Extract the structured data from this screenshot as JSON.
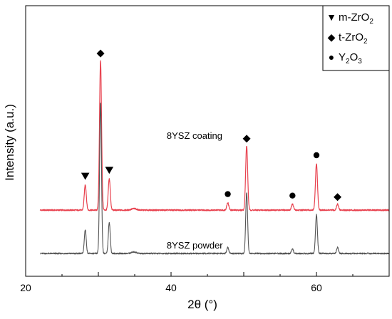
{
  "chart_data": {
    "type": "line",
    "xlabel": "2θ (°)",
    "ylabel": "Intensity (a.u.)",
    "xlim": [
      20,
      70
    ],
    "xticks": [
      20,
      40,
      60
    ],
    "y_ticks_labeled": false,
    "grid": false,
    "legend": {
      "placement": "top-right",
      "entries": [
        {
          "marker": "▼",
          "symbol": "triangle-down",
          "label": "m-ZrO",
          "sub": "2"
        },
        {
          "marker": "◆",
          "symbol": "diamond",
          "label": "t-ZrO",
          "sub": "2"
        },
        {
          "marker": "●",
          "symbol": "circle",
          "label": "Y",
          "sub": "2",
          "label2": "O",
          "sub2": "3"
        }
      ]
    },
    "series": [
      {
        "name": "8YSZ  coating",
        "color": "#e8424f",
        "baseline": 0.29,
        "peaks": [
          {
            "x": 28.2,
            "height": 0.17,
            "width": 0.14
          },
          {
            "x": 30.3,
            "height": 1.0,
            "width": 0.14
          },
          {
            "x": 31.5,
            "height": 0.21,
            "width": 0.14
          },
          {
            "x": 34.9,
            "height": 0.01,
            "width": 0.35
          },
          {
            "x": 47.8,
            "height": 0.05,
            "width": 0.14
          },
          {
            "x": 50.4,
            "height": 0.43,
            "width": 0.14
          },
          {
            "x": 56.7,
            "height": 0.04,
            "width": 0.14
          },
          {
            "x": 60.0,
            "height": 0.31,
            "width": 0.14
          },
          {
            "x": 62.9,
            "height": 0.04,
            "width": 0.14
          }
        ]
      },
      {
        "name": "8YSZ  powder",
        "color": "#555555",
        "baseline": 0.0,
        "peaks": [
          {
            "x": 28.2,
            "height": 0.16,
            "width": 0.13
          },
          {
            "x": 30.3,
            "height": 1.01,
            "width": 0.13
          },
          {
            "x": 31.5,
            "height": 0.21,
            "width": 0.13
          },
          {
            "x": 34.9,
            "height": 0.01,
            "width": 0.35
          },
          {
            "x": 47.8,
            "height": 0.04,
            "width": 0.13
          },
          {
            "x": 50.4,
            "height": 0.41,
            "width": 0.13
          },
          {
            "x": 56.7,
            "height": 0.03,
            "width": 0.13
          },
          {
            "x": 60.0,
            "height": 0.26,
            "width": 0.13
          },
          {
            "x": 62.9,
            "height": 0.04,
            "width": 0.13
          }
        ]
      }
    ],
    "peak_markers": [
      {
        "x": 28.2,
        "symbol": "triangle-down",
        "phase": "m-ZrO2"
      },
      {
        "x": 30.3,
        "symbol": "diamond",
        "phase": "t-ZrO2"
      },
      {
        "x": 31.5,
        "symbol": "triangle-down",
        "phase": "m-ZrO2"
      },
      {
        "x": 47.8,
        "symbol": "circle",
        "phase": "Y2O3"
      },
      {
        "x": 50.4,
        "symbol": "diamond",
        "phase": "t-ZrO2"
      },
      {
        "x": 56.7,
        "symbol": "circle",
        "phase": "Y2O3"
      },
      {
        "x": 60.0,
        "symbol": "circle",
        "phase": "Y2O3"
      },
      {
        "x": 62.9,
        "symbol": "diamond",
        "phase": "t-ZrO2"
      }
    ]
  }
}
